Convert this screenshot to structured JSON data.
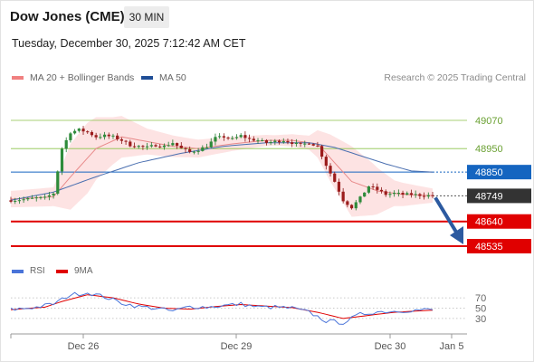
{
  "header": {
    "title": "Dow Jones (CME)",
    "interval": "30 MIN",
    "datetime": "Tuesday, December 30, 2025 7:12:42 AM CET"
  },
  "legend": {
    "ma20_label": "MA 20 + Bollinger Bands",
    "ma20_color": "#f08080",
    "ma50_label": "MA 50",
    "ma50_color": "#1f4e96",
    "credit": "Research © 2025 Trading Central"
  },
  "rsi_legend": {
    "rsi_label": "RSI",
    "rsi_color": "#4a74d9",
    "ma9_label": "9MA",
    "ma9_color": "#e00000"
  },
  "chart_data": {
    "type": "candlestick",
    "price_levels": [
      {
        "value": 49070,
        "label": "49070",
        "kind": "resistance",
        "color": "#8bc34a"
      },
      {
        "value": 48950,
        "label": "48950",
        "kind": "resistance",
        "color": "#8bc34a"
      },
      {
        "value": 48850,
        "label": "48850",
        "kind": "pivot",
        "color": "#1565c0"
      },
      {
        "value": 48749,
        "label": "48749",
        "kind": "last_price",
        "color": "#333333"
      },
      {
        "value": 48640,
        "label": "48640",
        "kind": "support",
        "color": "#e00000"
      },
      {
        "value": 48535,
        "label": "48535",
        "kind": "support",
        "color": "#e00000"
      }
    ],
    "y_range": [
      48535,
      49070
    ],
    "x_ticks": [
      "Dec 26",
      "Dec 29",
      "Dec 30",
      "Jan 5"
    ],
    "rsi_ticks": [
      70,
      50,
      30
    ],
    "rsi_range": [
      0,
      100
    ],
    "forecast_arrow": {
      "from": 48749,
      "to": 48535,
      "direction": "down"
    },
    "price_anchors": [
      [
        0,
        48730
      ],
      [
        4,
        48735
      ],
      [
        6,
        48740
      ],
      [
        8,
        48740
      ],
      [
        10,
        48760
      ],
      [
        12,
        48950
      ],
      [
        14,
        49020
      ],
      [
        16,
        49030
      ],
      [
        18,
        49020
      ],
      [
        20,
        49000
      ],
      [
        22,
        49005
      ],
      [
        24,
        49000
      ],
      [
        26,
        48985
      ],
      [
        28,
        48965
      ],
      [
        30,
        48960
      ],
      [
        32,
        48955
      ],
      [
        34,
        48965
      ],
      [
        36,
        48960
      ],
      [
        38,
        48975
      ],
      [
        40,
        48950
      ],
      [
        42,
        48935
      ],
      [
        44,
        48945
      ],
      [
        46,
        48960
      ],
      [
        48,
        48995
      ],
      [
        50,
        49000
      ],
      [
        52,
        48990
      ],
      [
        54,
        49005
      ],
      [
        56,
        48990
      ],
      [
        58,
        48985
      ],
      [
        60,
        48975
      ],
      [
        62,
        48980
      ],
      [
        64,
        48985
      ],
      [
        66,
        48975
      ],
      [
        68,
        48965
      ],
      [
        70,
        48975
      ],
      [
        72,
        48960
      ],
      [
        74,
        48880
      ],
      [
        76,
        48810
      ],
      [
        78,
        48730
      ],
      [
        80,
        48700
      ],
      [
        82,
        48740
      ],
      [
        84,
        48790
      ],
      [
        86,
        48775
      ],
      [
        88,
        48755
      ],
      [
        90,
        48760
      ],
      [
        92,
        48755
      ],
      [
        94,
        48755
      ],
      [
        96,
        48752
      ],
      [
        98,
        48750
      ],
      [
        99,
        48749
      ]
    ],
    "ma20_anchors": [
      [
        0,
        48735
      ],
      [
        10,
        48745
      ],
      [
        14,
        48830
      ],
      [
        20,
        48950
      ],
      [
        26,
        49000
      ],
      [
        32,
        48980
      ],
      [
        38,
        48960
      ],
      [
        44,
        48950
      ],
      [
        52,
        48970
      ],
      [
        60,
        48985
      ],
      [
        66,
        48985
      ],
      [
        72,
        48970
      ],
      [
        76,
        48890
      ],
      [
        80,
        48810
      ],
      [
        86,
        48770
      ],
      [
        92,
        48755
      ],
      [
        99,
        48750
      ]
    ],
    "ma50_anchors": [
      [
        0,
        48730
      ],
      [
        10,
        48765
      ],
      [
        20,
        48830
      ],
      [
        30,
        48890
      ],
      [
        40,
        48930
      ],
      [
        50,
        48960
      ],
      [
        60,
        48975
      ],
      [
        70,
        48975
      ],
      [
        76,
        48955
      ],
      [
        82,
        48920
      ],
      [
        88,
        48885
      ],
      [
        94,
        48855
      ],
      [
        99,
        48850
      ]
    ],
    "band_width_anchors": [
      [
        0,
        35
      ],
      [
        10,
        40
      ],
      [
        14,
        140
      ],
      [
        18,
        150
      ],
      [
        24,
        100
      ],
      [
        32,
        55
      ],
      [
        42,
        40
      ],
      [
        52,
        30
      ],
      [
        62,
        22
      ],
      [
        70,
        30
      ],
      [
        75,
        100
      ],
      [
        80,
        150
      ],
      [
        85,
        110
      ],
      [
        90,
        55
      ],
      [
        99,
        30
      ]
    ],
    "rsi_anchors": [
      [
        0,
        47
      ],
      [
        6,
        52
      ],
      [
        10,
        58
      ],
      [
        14,
        76
      ],
      [
        18,
        80
      ],
      [
        22,
        72
      ],
      [
        26,
        60
      ],
      [
        30,
        53
      ],
      [
        34,
        50
      ],
      [
        38,
        44
      ],
      [
        42,
        53
      ],
      [
        46,
        52
      ],
      [
        50,
        55
      ],
      [
        54,
        58
      ],
      [
        58,
        52
      ],
      [
        62,
        52
      ],
      [
        66,
        50
      ],
      [
        70,
        42
      ],
      [
        74,
        25
      ],
      [
        78,
        22
      ],
      [
        82,
        38
      ],
      [
        86,
        43
      ],
      [
        90,
        44
      ],
      [
        94,
        46
      ],
      [
        99,
        47
      ]
    ],
    "rsi_ma_anchors": [
      [
        0,
        47
      ],
      [
        8,
        52
      ],
      [
        12,
        63
      ],
      [
        18,
        76
      ],
      [
        24,
        70
      ],
      [
        30,
        58
      ],
      [
        36,
        50
      ],
      [
        42,
        48
      ],
      [
        48,
        53
      ],
      [
        54,
        57
      ],
      [
        60,
        54
      ],
      [
        66,
        51
      ],
      [
        72,
        42
      ],
      [
        78,
        30
      ],
      [
        84,
        36
      ],
      [
        90,
        42
      ],
      [
        99,
        46
      ]
    ]
  }
}
